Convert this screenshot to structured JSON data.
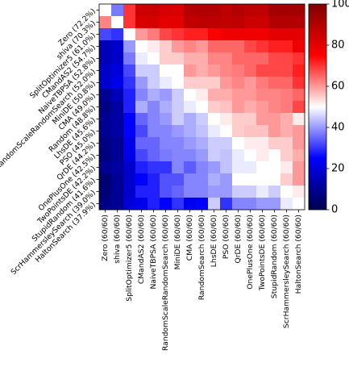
{
  "chart_data": {
    "type": "heatmap",
    "title": "",
    "xlabel": "",
    "ylabel": "",
    "row_labels": [
      "Zero (72.2%)",
      "shiva (70.3%)",
      "SplitOptimizer5 (61.0%)",
      "CMandAS2 (54.7%)",
      "NaiveTBPSA (52.8%)",
      "RandomScaleRandomSearch (52.0%)",
      "MiniDE (50.8%)",
      "CMA (49.0%)",
      "Random (48.8%)",
      "LhsDE (45.6%)",
      "PSO (45.0%)",
      "QrDE (44.2%)",
      "OnePlusOne (42.5%)",
      "TwoPointsDE (42.2%)",
      "StupidRandom (41.6%)",
      "ScrHammersleySearch (39.0%)",
      "HaltonSearch (37.9%)"
    ],
    "col_labels": [
      "Zero (60/60)",
      "shiva (60/60)",
      "SplitOptimizer5 (60/60)",
      "CMandAS2 (60/60)",
      "NaiveTBPSA (60/60)",
      "RandomScaleRandomSearch (60/60)",
      "MiniDE (60/60)",
      "CMA (60/60)",
      "RandomSearch (60/60)",
      "LhsDE (60/60)",
      "PSO (60/60)",
      "QrDE (60/60)",
      "OnePlusOne (60/60)",
      "TwoPointsDE (60/60)",
      "StupidRandom (60/60)",
      "ScrHammersleySearch (60/60)",
      "HaltonSearch (60/60)"
    ],
    "values": [
      [
        50,
        37,
        70,
        85,
        86,
        83,
        82,
        90,
        90,
        90,
        88,
        90,
        88,
        88,
        93,
        93,
        93
      ],
      [
        62,
        50,
        70,
        82,
        83,
        80,
        80,
        87,
        88,
        88,
        87,
        88,
        85,
        85,
        90,
        90,
        90
      ],
      [
        32,
        30,
        50,
        60,
        63,
        68,
        70,
        72,
        72,
        75,
        78,
        78,
        78,
        78,
        80,
        80,
        80
      ],
      [
        15,
        18,
        40,
        50,
        52,
        55,
        60,
        62,
        60,
        65,
        65,
        65,
        68,
        70,
        72,
        72,
        78
      ],
      [
        15,
        17,
        37,
        48,
        50,
        55,
        55,
        58,
        58,
        62,
        62,
        65,
        65,
        65,
        68,
        68,
        70
      ],
      [
        17,
        20,
        32,
        45,
        45,
        50,
        50,
        60,
        58,
        60,
        62,
        63,
        65,
        68,
        68,
        68,
        72
      ],
      [
        18,
        22,
        30,
        40,
        45,
        48,
        50,
        55,
        55,
        55,
        60,
        62,
        60,
        63,
        65,
        65,
        70
      ],
      [
        10,
        15,
        28,
        38,
        42,
        40,
        45,
        50,
        52,
        58,
        58,
        60,
        60,
        62,
        62,
        63,
        65
      ],
      [
        8,
        12,
        28,
        42,
        38,
        42,
        45,
        48,
        50,
        55,
        56,
        60,
        58,
        60,
        62,
        63,
        68
      ],
      [
        10,
        12,
        25,
        35,
        38,
        40,
        45,
        42,
        45,
        50,
        52,
        55,
        55,
        60,
        60,
        58,
        52
      ],
      [
        10,
        12,
        25,
        32,
        38,
        38,
        40,
        42,
        44,
        48,
        50,
        55,
        56,
        56,
        60,
        58,
        60
      ],
      [
        8,
        10,
        22,
        35,
        35,
        38,
        38,
        40,
        42,
        45,
        45,
        50,
        52,
        52,
        55,
        55,
        60
      ],
      [
        7,
        10,
        22,
        32,
        35,
        37,
        38,
        38,
        40,
        45,
        44,
        48,
        50,
        52,
        50,
        55,
        58
      ],
      [
        10,
        12,
        18,
        28,
        30,
        30,
        38,
        34,
        38,
        40,
        44,
        48,
        48,
        50,
        50,
        52,
        60
      ],
      [
        5,
        10,
        18,
        25,
        28,
        33,
        33,
        38,
        38,
        42,
        40,
        50,
        50,
        50,
        50,
        55,
        60
      ],
      [
        6,
        10,
        18,
        28,
        28,
        33,
        35,
        38,
        38,
        40,
        40,
        45,
        45,
        48,
        45,
        50,
        52
      ],
      [
        8,
        10,
        20,
        22,
        28,
        25,
        30,
        23,
        25,
        45,
        30,
        38,
        38,
        40,
        40,
        48,
        50
      ]
    ],
    "colorbar": {
      "colormap": "seismic",
      "range": [
        0,
        100
      ],
      "ticks": [
        "0",
        "20",
        "40",
        "60",
        "80",
        "100"
      ]
    },
    "grid": false,
    "legend": "colorbar-right"
  }
}
